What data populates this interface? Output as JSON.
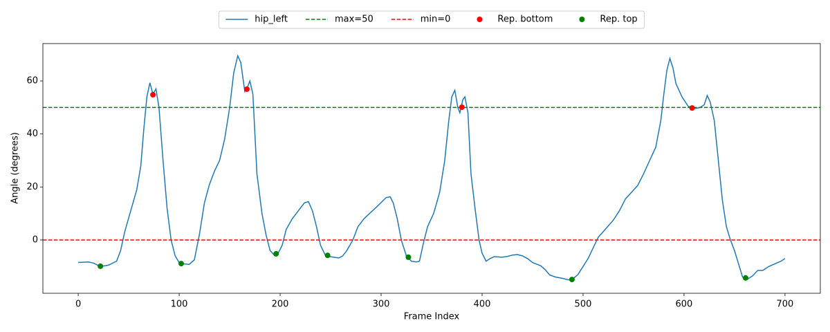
{
  "chart_data": {
    "type": "line",
    "x_label": "Frame Index",
    "y_label": "Angle (degrees)",
    "xlim": [
      -35,
      735
    ],
    "ylim": [
      -20.1,
      74.1
    ],
    "xticks": [
      0,
      100,
      200,
      300,
      400,
      500,
      600,
      700
    ],
    "yticks": [
      0,
      20,
      40,
      60
    ],
    "legend": "upper center",
    "series": [
      {
        "name": "hip_left",
        "color": "#1f77b4",
        "x": [
          0,
          10,
          15,
          22,
          30,
          38,
          42,
          46,
          52,
          58,
          62,
          65,
          68,
          71,
          74,
          77,
          80,
          84,
          88,
          92,
          96,
          100,
          105,
          110,
          115,
          120,
          125,
          130,
          135,
          140,
          145,
          150,
          154,
          158,
          161,
          165,
          168,
          170,
          173,
          177,
          182,
          186,
          190,
          195,
          198,
          202,
          206,
          212,
          218,
          224,
          228,
          232,
          236,
          240,
          245,
          250,
          258,
          262,
          266,
          272,
          277,
          283,
          290,
          297,
          305,
          309,
          312,
          316,
          320,
          325,
          330,
          335,
          338,
          342,
          346,
          352,
          358,
          363,
          367,
          370,
          373,
          376,
          378,
          381,
          383,
          386,
          389,
          393,
          397,
          400,
          404,
          408,
          412,
          420,
          425,
          430,
          435,
          440,
          445,
          450,
          458,
          462,
          467,
          473,
          480,
          485,
          489,
          495,
          500,
          505,
          510,
          515,
          522,
          530,
          536,
          542,
          548,
          554,
          560,
          566,
          572,
          577,
          580,
          583,
          586,
          589,
          592,
          598,
          604,
          610,
          616,
          620,
          623,
          626,
          630,
          634,
          638,
          642,
          646,
          650,
          654,
          658,
          662,
          668,
          673,
          678,
          684,
          690,
          696,
          700
        ],
        "values": [
          -8.5,
          -8.3,
          -8.7,
          -10,
          -9.5,
          -8,
          -4,
          3,
          11,
          19,
          28,
          42,
          54,
          59.3,
          55,
          57,
          50,
          30,
          12,
          0,
          -6,
          -8.5,
          -9,
          -9.2,
          -7.5,
          2,
          14,
          21,
          26,
          30,
          38,
          50,
          63,
          69.5,
          67,
          56,
          58,
          60,
          55,
          25,
          10,
          2,
          -4,
          -6,
          -5,
          -2,
          4,
          8,
          11,
          14,
          14.5,
          11,
          5,
          -2,
          -6,
          -6.3,
          -6.8,
          -6,
          -4,
          0,
          5,
          8,
          10.5,
          13,
          16,
          16.3,
          14,
          8,
          0,
          -6,
          -8,
          -8.3,
          -8,
          -1,
          5,
          10,
          18,
          30,
          45,
          54,
          56.5,
          50,
          48,
          53,
          54,
          48,
          25,
          12,
          0,
          -5,
          -8,
          -7,
          -6.3,
          -6.5,
          -6.2,
          -5.7,
          -5.5,
          -6,
          -7,
          -8.5,
          -9.7,
          -11,
          -13.2,
          -14,
          -14.5,
          -15,
          -15,
          -13,
          -10,
          -7,
          -3,
          1,
          4,
          7.5,
          11,
          15.5,
          18,
          20.5,
          25,
          30,
          35,
          45,
          55,
          64,
          68.5,
          65,
          59,
          54,
          50.5,
          49.5,
          50,
          51,
          54.5,
          52,
          45,
          30,
          15,
          5,
          0,
          -4,
          -9,
          -14,
          -15,
          -13.5,
          -11.5,
          -11.5,
          -10,
          -9,
          -8,
          -7
        ]
      }
    ],
    "hlines": [
      {
        "name": "max=50",
        "value": 50,
        "color": "#008000",
        "style": "dashed"
      },
      {
        "name": "min=0",
        "value": 0,
        "color": "#ff0000",
        "style": "dashed"
      }
    ],
    "scatter": [
      {
        "name": "Rep. bottom",
        "color": "#ff0000",
        "x": [
          74,
          167,
          380,
          608
        ],
        "values": [
          54.8,
          56.9,
          50.1,
          49.8
        ]
      },
      {
        "name": "Rep. top",
        "color": "#008000",
        "x": [
          22,
          102,
          196,
          247,
          327,
          489,
          661
        ],
        "values": [
          -9.9,
          -8.9,
          -5.2,
          -5.8,
          -6.5,
          -14.9,
          -14.3
        ]
      }
    ]
  }
}
